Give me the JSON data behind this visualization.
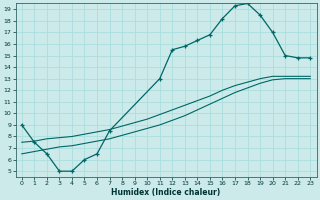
{
  "xlabel": "Humidex (Indice chaleur)",
  "bg_color": "#cceaea",
  "line_color": "#006666",
  "grid_color": "#aadddd",
  "xlim": [
    -0.5,
    23.5
  ],
  "ylim": [
    4.5,
    19.5
  ],
  "xticks": [
    0,
    1,
    2,
    3,
    4,
    5,
    6,
    7,
    8,
    9,
    10,
    11,
    12,
    13,
    14,
    15,
    16,
    17,
    18,
    19,
    20,
    21,
    22,
    23
  ],
  "yticks": [
    5,
    6,
    7,
    8,
    9,
    10,
    11,
    12,
    13,
    14,
    15,
    16,
    17,
    18,
    19
  ],
  "main_x": [
    0,
    1,
    2,
    3,
    4,
    5,
    6,
    7,
    11,
    12,
    13,
    14,
    15,
    16,
    17,
    18,
    19,
    20,
    21,
    22,
    23
  ],
  "main_y": [
    9.0,
    7.5,
    6.5,
    5.0,
    5.0,
    6.0,
    6.5,
    8.5,
    13.0,
    15.5,
    15.8,
    16.3,
    16.8,
    18.2,
    19.3,
    19.5,
    18.5,
    17.0,
    15.0,
    14.8,
    14.8
  ],
  "line1_x": [
    0,
    1,
    2,
    3,
    4,
    5,
    6,
    7,
    8,
    9,
    10,
    11,
    12,
    13,
    14,
    15,
    16,
    17,
    18,
    19,
    20,
    21,
    22,
    23
  ],
  "line1_y": [
    6.5,
    6.7,
    6.9,
    7.1,
    7.2,
    7.4,
    7.6,
    7.8,
    8.1,
    8.4,
    8.7,
    9.0,
    9.4,
    9.8,
    10.3,
    10.8,
    11.3,
    11.8,
    12.2,
    12.6,
    12.9,
    13.0,
    13.0,
    13.0
  ],
  "line2_x": [
    0,
    1,
    2,
    3,
    4,
    5,
    6,
    7,
    8,
    9,
    10,
    11,
    12,
    13,
    14,
    15,
    16,
    17,
    18,
    19,
    20,
    21,
    22,
    23
  ],
  "line2_y": [
    7.5,
    7.6,
    7.8,
    7.9,
    8.0,
    8.2,
    8.4,
    8.6,
    8.9,
    9.2,
    9.5,
    9.9,
    10.3,
    10.7,
    11.1,
    11.5,
    12.0,
    12.4,
    12.7,
    13.0,
    13.2,
    13.2,
    13.2,
    13.2
  ]
}
